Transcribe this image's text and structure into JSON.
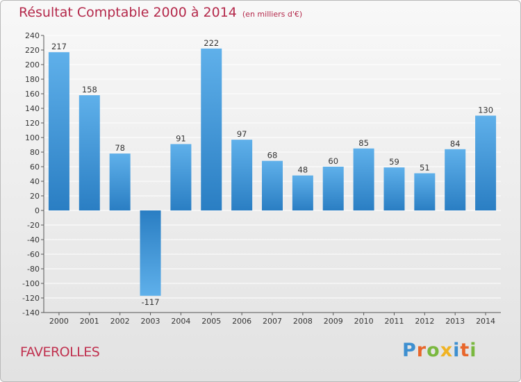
{
  "title": "Résultat Comptable 2000 à 2014",
  "subtitle": "(en milliers d'€)",
  "location": "FAVEROLLES",
  "logo": {
    "text": "Proxiti",
    "letter_colors": [
      "#3d8fd0",
      "#e8662b",
      "#7ab83f",
      "#f0b323",
      "#3d8fd0",
      "#e8662b",
      "#7ab83f"
    ]
  },
  "colors": {
    "title": "#b4284a",
    "bar_light": "#5fb0ea",
    "bar_dark": "#2a7ec3",
    "grid": "#ffffff",
    "axis": "#555555",
    "label": "#333333"
  },
  "chart_data": {
    "type": "bar",
    "categories": [
      "2000",
      "2001",
      "2002",
      "2003",
      "2004",
      "2005",
      "2006",
      "2007",
      "2008",
      "2009",
      "2010",
      "2011",
      "2012",
      "2013",
      "2014"
    ],
    "values": [
      217,
      158,
      78,
      -117,
      91,
      222,
      97,
      68,
      48,
      60,
      85,
      59,
      51,
      84,
      130
    ],
    "data_labels": [
      "217",
      "158",
      "78",
      "-117",
      "91",
      "222",
      "97",
      "68",
      "48",
      "60",
      "85",
      "59",
      "51",
      "84",
      "130"
    ],
    "ylim": [
      -140,
      240
    ],
    "ytick_step": 20,
    "yticks": [
      "-140",
      "-120",
      "-100",
      "-80",
      "-60",
      "-40",
      "-20",
      "0",
      "20",
      "40",
      "60",
      "80",
      "100",
      "120",
      "140",
      "160",
      "180",
      "200",
      "220",
      "240"
    ],
    "grid": true,
    "legend": "none"
  }
}
